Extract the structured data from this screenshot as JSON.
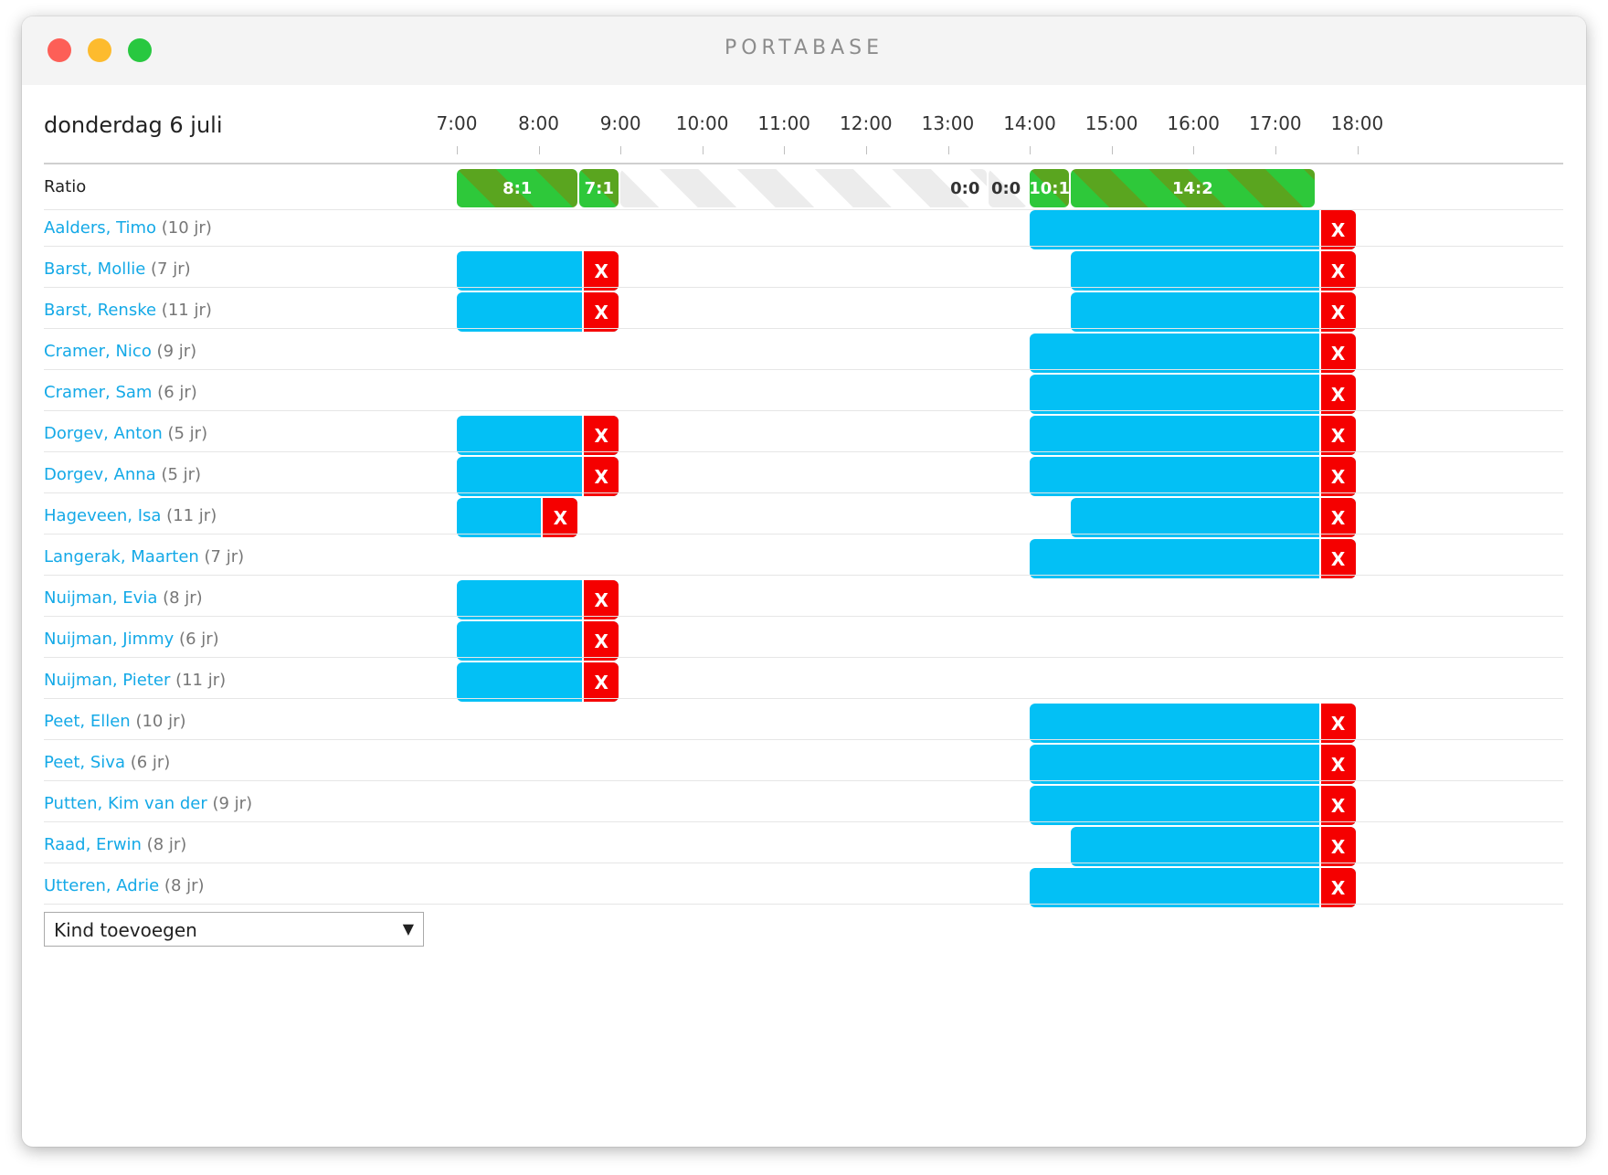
{
  "window": {
    "title": "PORTABASE"
  },
  "schedule": {
    "date": "donderdag 6 juli",
    "hours": [
      "7:00",
      "8:00",
      "9:00",
      "10:00",
      "11:00",
      "12:00",
      "13:00",
      "14:00",
      "15:00",
      "16:00",
      "17:00",
      "18:00"
    ],
    "ratio_label": "Ratio",
    "ratio_segments": [
      {
        "label": "8:1",
        "start": "7:00",
        "end": "8:30",
        "style": "green"
      },
      {
        "label": "7:1",
        "start": "8:30",
        "end": "9:00",
        "style": "green"
      },
      {
        "label": "0:0",
        "start": "9:00",
        "end": "13:30",
        "style": "empty"
      },
      {
        "label": "0:0",
        "start": "13:30",
        "end": "14:00",
        "style": "empty"
      },
      {
        "label": "10:1",
        "start": "14:00",
        "end": "14:30",
        "style": "green"
      },
      {
        "label": "14:2",
        "start": "14:30",
        "end": "17:30",
        "style": "green"
      }
    ],
    "delete_label": "X",
    "children": [
      {
        "name": "Aalders, Timo",
        "age": "(10 jr)",
        "slots": [
          [
            "14:00",
            "18:00"
          ]
        ]
      },
      {
        "name": "Barst, Mollie",
        "age": "(7 jr)",
        "slots": [
          [
            "7:00",
            "9:00"
          ],
          [
            "14:30",
            "18:00"
          ]
        ]
      },
      {
        "name": "Barst, Renske",
        "age": "(11 jr)",
        "slots": [
          [
            "7:00",
            "9:00"
          ],
          [
            "14:30",
            "18:00"
          ]
        ]
      },
      {
        "name": "Cramer, Nico",
        "age": "(9 jr)",
        "slots": [
          [
            "14:00",
            "18:00"
          ]
        ]
      },
      {
        "name": "Cramer, Sam",
        "age": "(6 jr)",
        "slots": [
          [
            "14:00",
            "18:00"
          ]
        ]
      },
      {
        "name": "Dorgev, Anton",
        "age": "(5 jr)",
        "slots": [
          [
            "7:00",
            "9:00"
          ],
          [
            "14:00",
            "18:00"
          ]
        ]
      },
      {
        "name": "Dorgev, Anna",
        "age": "(5 jr)",
        "slots": [
          [
            "7:00",
            "9:00"
          ],
          [
            "14:00",
            "18:00"
          ]
        ]
      },
      {
        "name": "Hageveen, Isa",
        "age": "(11 jr)",
        "slots": [
          [
            "7:00",
            "8:30"
          ],
          [
            "14:30",
            "18:00"
          ]
        ]
      },
      {
        "name": "Langerak, Maarten",
        "age": "(7 jr)",
        "slots": [
          [
            "14:00",
            "18:00"
          ]
        ]
      },
      {
        "name": "Nuijman, Evia",
        "age": "(8 jr)",
        "slots": [
          [
            "7:00",
            "9:00"
          ]
        ]
      },
      {
        "name": "Nuijman, Jimmy",
        "age": "(6 jr)",
        "slots": [
          [
            "7:00",
            "9:00"
          ]
        ]
      },
      {
        "name": "Nuijman, Pieter",
        "age": "(11 jr)",
        "slots": [
          [
            "7:00",
            "9:00"
          ]
        ]
      },
      {
        "name": "Peet, Ellen",
        "age": "(10 jr)",
        "slots": [
          [
            "14:00",
            "18:00"
          ]
        ]
      },
      {
        "name": "Peet, Siva",
        "age": "(6 jr)",
        "slots": [
          [
            "14:00",
            "18:00"
          ]
        ]
      },
      {
        "name": "Putten, Kim van der",
        "age": "(9 jr)",
        "slots": [
          [
            "14:00",
            "18:00"
          ]
        ]
      },
      {
        "name": "Raad, Erwin",
        "age": "(8 jr)",
        "slots": [
          [
            "14:30",
            "18:00"
          ]
        ]
      },
      {
        "name": "Utteren, Adrie",
        "age": "(8 jr)",
        "slots": [
          [
            "14:00",
            "18:00"
          ]
        ]
      }
    ],
    "add_child": {
      "selected": "Kind toevoegen"
    }
  },
  "colors": {
    "bar": "#03c0f5",
    "delete": "#f50000",
    "ratio_green": "#2ec83a",
    "ratio_green_dark": "#5aa51f",
    "link": "#14a9e7"
  }
}
